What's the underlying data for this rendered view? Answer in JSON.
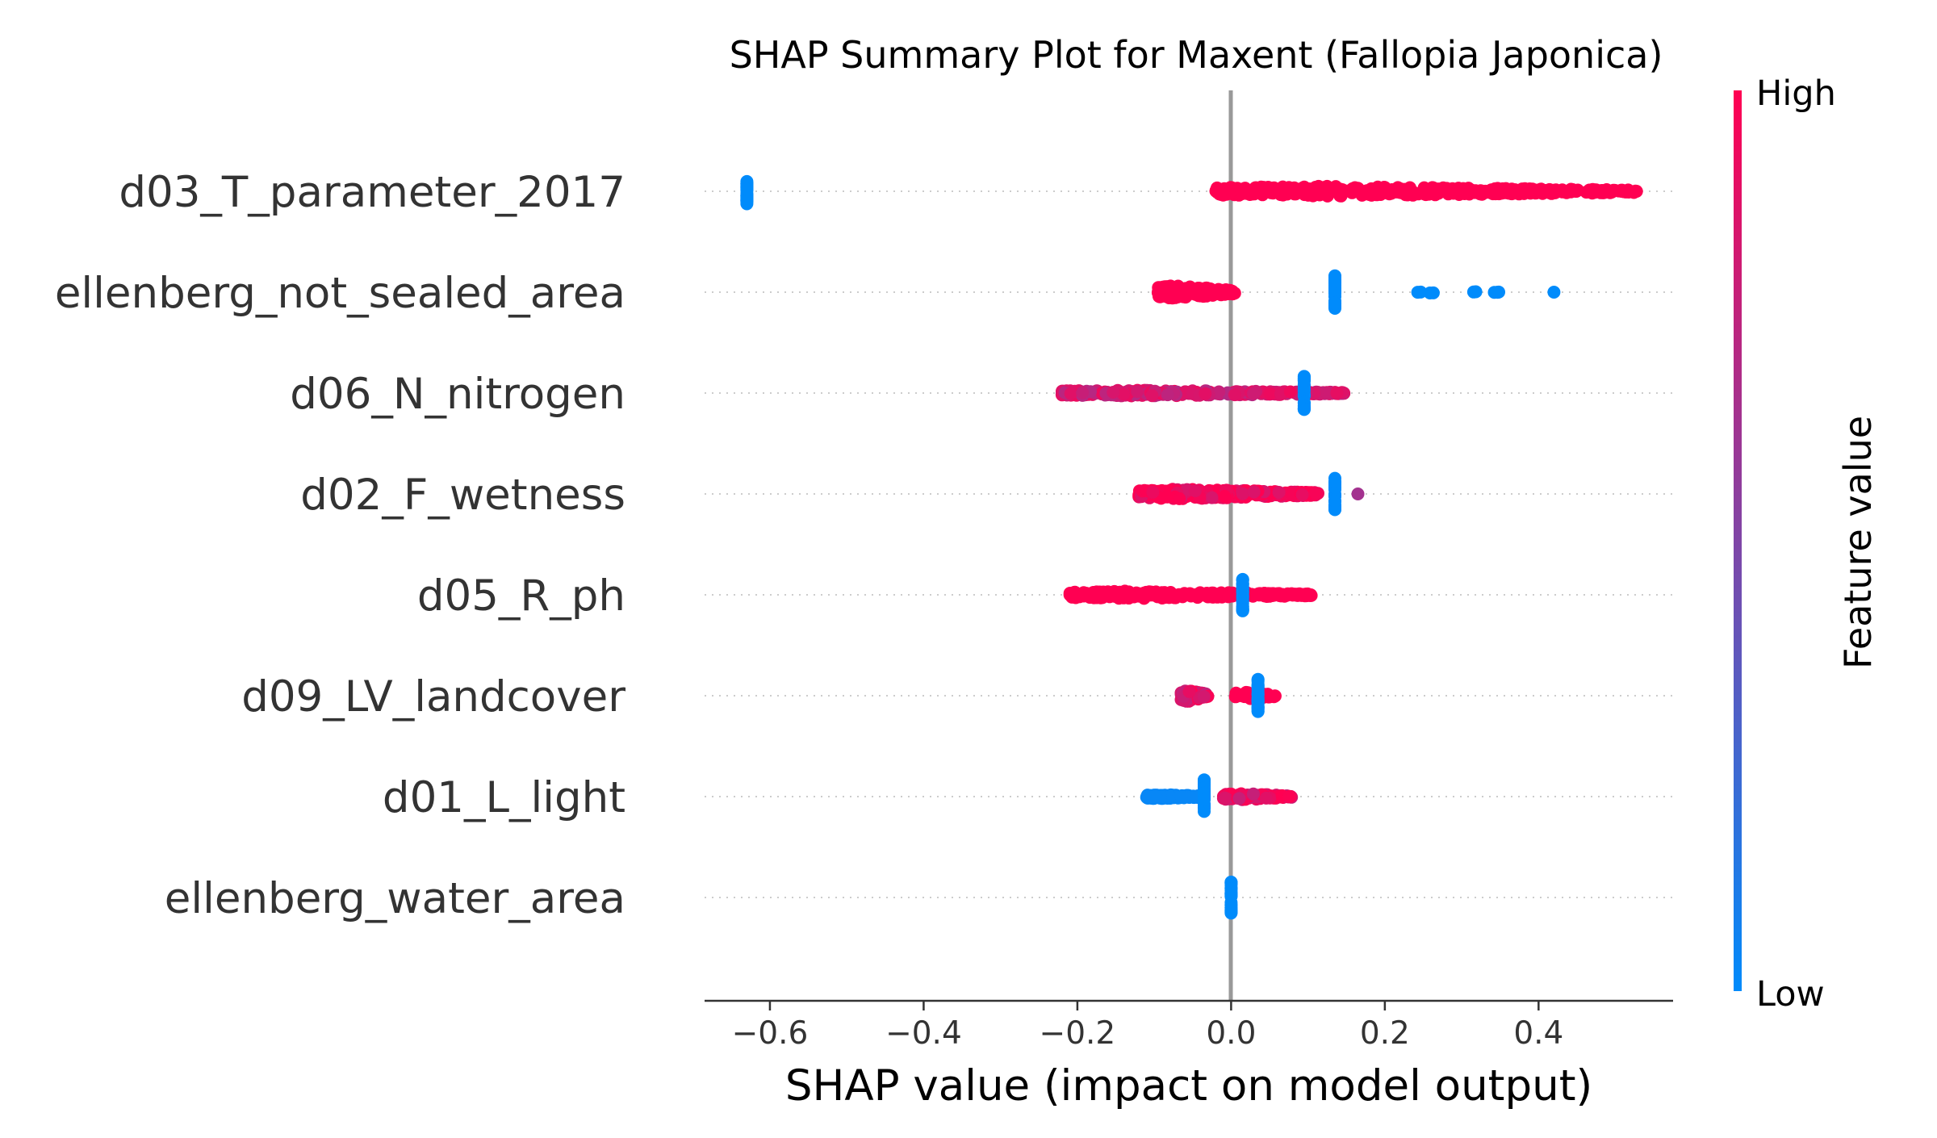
{
  "chart_data": {
    "type": "scatter",
    "title": "SHAP Summary Plot for Maxent (Fallopia Japonica)",
    "xlabel": "SHAP value (impact on model output)",
    "ylabel": "",
    "xlim": [
      -0.685,
      0.575
    ],
    "xticks": [
      -0.6,
      -0.4,
      -0.2,
      0.0,
      0.2,
      0.4
    ],
    "xtick_labels": [
      "−0.6",
      "−0.4",
      "−0.2",
      "0.0",
      "0.2",
      "0.4"
    ],
    "features": [
      "d03_T_parameter_2017",
      "ellenberg_not_sealed_area",
      "d06_N_nitrogen",
      "d02_F_wetness",
      "d05_R_ph",
      "d09_LV_landcover",
      "d01_L_light",
      "ellenberg_water_area"
    ],
    "colorbar": {
      "title": "Feature value",
      "high_label": "High",
      "low_label": "Low",
      "low_color": "#008bfb",
      "high_color": "#ff0052"
    },
    "grid": "dotted horizontal per feature",
    "legend": "colorbar on right",
    "series": [
      {
        "feature": "d03_T_parameter_2017",
        "groups": [
          {
            "min": -0.63,
            "max": -0.63,
            "count": 30,
            "color": 0.0,
            "spread": 0.3
          },
          {
            "min": -0.02,
            "max": 0.53,
            "count": 420,
            "color": 1.0,
            "spread": 0.12
          }
        ]
      },
      {
        "feature": "ellenberg_not_sealed_area",
        "groups": [
          {
            "min": -0.095,
            "max": 0.005,
            "count": 200,
            "color": 1.0,
            "spread": 0.16
          },
          {
            "min": 0.135,
            "max": 0.135,
            "count": 30,
            "color": 0.0,
            "spread": 0.4
          },
          {
            "min": 0.235,
            "max": 0.35,
            "count": 10,
            "color": 0.0,
            "spread": 0.02
          },
          {
            "min": 0.42,
            "max": 0.42,
            "count": 1,
            "color": 0.0,
            "spread": 0.0
          }
        ]
      },
      {
        "feature": "d06_N_nitrogen",
        "groups": [
          {
            "min": -0.22,
            "max": 0.15,
            "count": 330,
            "color": 0.82,
            "spread": 0.07
          },
          {
            "min": 0.095,
            "max": 0.095,
            "count": 30,
            "color": 0.0,
            "spread": 0.4
          }
        ]
      },
      {
        "feature": "d02_F_wetness",
        "groups": [
          {
            "min": -0.12,
            "max": 0.115,
            "count": 260,
            "color": 0.97,
            "spread": 0.12
          },
          {
            "min": 0.135,
            "max": 0.135,
            "count": 30,
            "color": 0.0,
            "spread": 0.4
          },
          {
            "min": 0.165,
            "max": 0.165,
            "count": 1,
            "color": 0.75,
            "spread": 0.0
          }
        ]
      },
      {
        "feature": "d05_R_ph",
        "groups": [
          {
            "min": -0.21,
            "max": 0.105,
            "count": 280,
            "color": 1.0,
            "spread": 0.09
          },
          {
            "min": 0.015,
            "max": 0.015,
            "count": 30,
            "color": 0.0,
            "spread": 0.4
          }
        ]
      },
      {
        "feature": "d09_LV_landcover",
        "groups": [
          {
            "min": -0.065,
            "max": -0.03,
            "count": 70,
            "color": 0.88,
            "spread": 0.14
          },
          {
            "min": 0.005,
            "max": 0.06,
            "count": 40,
            "color": 1.0,
            "spread": 0.08
          },
          {
            "min": 0.035,
            "max": 0.035,
            "count": 30,
            "color": 0.0,
            "spread": 0.4
          }
        ]
      },
      {
        "feature": "d01_L_light",
        "groups": [
          {
            "min": -0.11,
            "max": -0.035,
            "count": 120,
            "color": 0.03,
            "spread": 0.05
          },
          {
            "min": -0.035,
            "max": -0.035,
            "count": 30,
            "color": 0.0,
            "spread": 0.4
          },
          {
            "min": -0.01,
            "max": 0.08,
            "count": 110,
            "color": 0.9,
            "spread": 0.08
          }
        ]
      },
      {
        "feature": "ellenberg_water_area",
        "groups": [
          {
            "min": 0.0,
            "max": 0.0,
            "count": 30,
            "color": 0.0,
            "spread": 0.4
          }
        ]
      }
    ]
  }
}
